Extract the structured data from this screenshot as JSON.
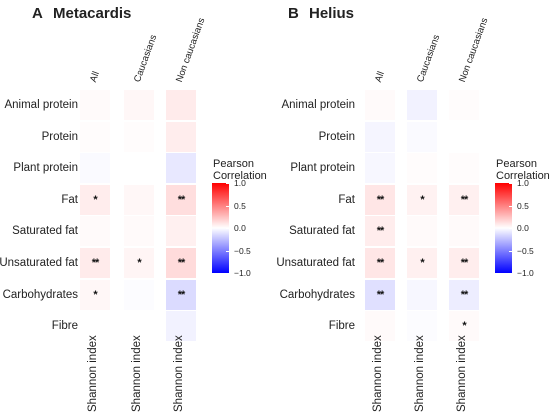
{
  "colors": {
    "positive": "#ff0000",
    "zero": "#ffffff",
    "negative": "#0000ff"
  },
  "chart_data": [
    {
      "type": "heatmap",
      "panel": "A",
      "title": "Metacardis",
      "columns": [
        "All",
        "Caucasians",
        "Non caucasians"
      ],
      "xlabel": "Shannon index",
      "rows": [
        "Animal protein",
        "Protein",
        "Plant protein",
        "Fat",
        "Saturated fat",
        "Unsaturated fat",
        "Carbohydrates",
        "Fibre"
      ],
      "values": [
        [
          0.02,
          0.03,
          0.08
        ],
        [
          0.01,
          0.01,
          0.07
        ],
        [
          -0.02,
          0.0,
          -0.09
        ],
        [
          0.07,
          0.03,
          0.13
        ],
        [
          0.02,
          0.02,
          0.06
        ],
        [
          0.08,
          0.04,
          0.14
        ],
        [
          0.03,
          -0.01,
          -0.14
        ],
        [
          0.0,
          0.0,
          -0.05
        ]
      ],
      "significance": [
        [
          "",
          "",
          ""
        ],
        [
          "",
          "",
          ""
        ],
        [
          "",
          "",
          ""
        ],
        [
          "*",
          "",
          "**"
        ],
        [
          "",
          "",
          ""
        ],
        [
          "**",
          "*",
          "**"
        ],
        [
          "*",
          "",
          "**"
        ],
        [
          "",
          "",
          ""
        ]
      ],
      "legend": {
        "title": "Pearson Correlation",
        "ticks": [
          "1.0",
          "0.5",
          "0.0",
          "−0.5",
          "−1.0"
        ],
        "range": [
          -1,
          1
        ]
      }
    },
    {
      "type": "heatmap",
      "panel": "B",
      "title": "Helius",
      "columns": [
        "All",
        "Caucasians",
        "Non caucasians"
      ],
      "xlabel": "Shannon index",
      "rows": [
        "Animal protein",
        "Protein",
        "Plant protein",
        "Fat",
        "Saturated fat",
        "Unsaturated fat",
        "Carbohydrates",
        "Fibre"
      ],
      "values": [
        [
          0.02,
          -0.05,
          0.01
        ],
        [
          -0.04,
          -0.02,
          0.0
        ],
        [
          -0.03,
          0.01,
          0.01
        ],
        [
          0.1,
          0.05,
          0.06
        ],
        [
          0.07,
          0.02,
          0.02
        ],
        [
          0.1,
          0.06,
          0.07
        ],
        [
          -0.12,
          -0.03,
          -0.07
        ],
        [
          0.02,
          -0.01,
          0.02
        ]
      ],
      "significance": [
        [
          "",
          "",
          ""
        ],
        [
          "",
          "",
          ""
        ],
        [
          "",
          "",
          ""
        ],
        [
          "**",
          "*",
          "**"
        ],
        [
          "**",
          "",
          ""
        ],
        [
          "**",
          "*",
          "**"
        ],
        [
          "**",
          "",
          "**"
        ],
        [
          "",
          "",
          "*"
        ]
      ],
      "legend": {
        "title": "Pearson Correlation",
        "ticks": [
          "1.0",
          "0.5",
          "0.0",
          "−0.5",
          "−1.0"
        ],
        "range": [
          -1,
          1
        ]
      }
    }
  ]
}
